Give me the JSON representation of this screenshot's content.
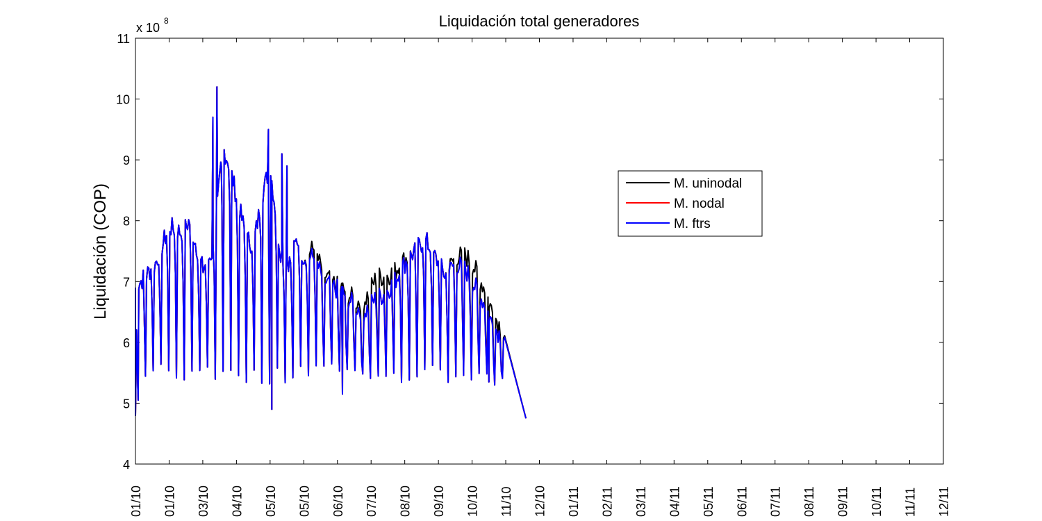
{
  "chart_data": {
    "type": "line",
    "title": "Liquidación total generadores",
    "xlabel": "",
    "ylabel": "Liquidación (COP)",
    "y_multiplier_label": "x 10",
    "y_multiplier_exponent": "8",
    "ylim": [
      4,
      11
    ],
    "yticks": [
      4,
      5,
      6,
      7,
      8,
      9,
      10,
      11
    ],
    "x_tick_labels": [
      "01/10",
      "01/10",
      "03/10",
      "04/10",
      "05/10",
      "05/10",
      "06/10",
      "07/10",
      "08/10",
      "09/10",
      "10/10",
      "11/10",
      "12/10",
      "01/11",
      "02/11",
      "03/11",
      "04/11",
      "05/11",
      "06/11",
      "07/11",
      "08/11",
      "09/11",
      "10/11",
      "11/11",
      "12/11"
    ],
    "grid": false,
    "legend": {
      "position": "center-right"
    },
    "series": [
      {
        "name": "M. uninodal",
        "color": "#000000",
        "values": []
      },
      {
        "name": "M. nodal",
        "color": "#ff0000",
        "values": []
      },
      {
        "name": "M. ftrs",
        "color": "#0000ff",
        "values": []
      }
    ],
    "daily_values_note": "",
    "baseline": [
      [
        0.0,
        6.9
      ],
      [
        0.6,
        7.3
      ],
      [
        1.0,
        7.9
      ],
      [
        1.4,
        7.8
      ],
      [
        1.6,
        8.0
      ],
      [
        2.0,
        7.2
      ],
      [
        2.3,
        7.5
      ],
      [
        2.6,
        9.2
      ],
      [
        2.8,
        8.9
      ],
      [
        3.0,
        8.4
      ],
      [
        3.3,
        7.7
      ],
      [
        3.5,
        7.6
      ],
      [
        3.8,
        8.5
      ],
      [
        4.0,
        8.9
      ],
      [
        4.3,
        7.5
      ],
      [
        4.6,
        7.3
      ],
      [
        4.8,
        7.7
      ],
      [
        5.0,
        7.4
      ],
      [
        5.3,
        7.4
      ],
      [
        5.6,
        7.0
      ],
      [
        5.9,
        6.9
      ],
      [
        6.2,
        6.8
      ],
      [
        6.5,
        6.6
      ],
      [
        6.8,
        6.5
      ],
      [
        7.1,
        6.7
      ],
      [
        7.4,
        6.8
      ],
      [
        7.7,
        7.0
      ],
      [
        8.0,
        7.3
      ],
      [
        8.3,
        7.5
      ],
      [
        8.6,
        7.7
      ],
      [
        8.9,
        7.4
      ],
      [
        9.2,
        7.1
      ],
      [
        9.5,
        7.3
      ],
      [
        9.8,
        7.2
      ],
      [
        10.1,
        6.9
      ],
      [
        10.4,
        6.6
      ],
      [
        10.6,
        6.3
      ],
      [
        11.0,
        6.0
      ]
    ],
    "black_offset": [
      [
        5.0,
        0.0
      ],
      [
        5.3,
        0.15
      ],
      [
        6.0,
        0.05
      ],
      [
        6.6,
        0.1
      ],
      [
        7.2,
        0.35
      ],
      [
        7.6,
        0.2
      ],
      [
        8.2,
        0.0
      ],
      [
        9.2,
        0.0
      ],
      [
        9.6,
        0.15
      ],
      [
        10.0,
        0.3
      ],
      [
        10.4,
        0.25
      ],
      [
        10.8,
        0.15
      ],
      [
        11.0,
        0.0
      ]
    ],
    "spikes": [
      [
        2.3,
        9.7
      ],
      [
        2.42,
        10.2
      ],
      [
        2.55,
        8.9
      ],
      [
        3.95,
        9.5
      ],
      [
        4.05,
        8.3
      ],
      [
        4.35,
        9.1
      ],
      [
        4.5,
        8.9
      ]
    ],
    "dips": [
      [
        0.0,
        4.8
      ],
      [
        0.08,
        5.05
      ],
      [
        4.05,
        4.9
      ],
      [
        6.15,
        5.15
      ],
      [
        11.6,
        4.75
      ],
      [
        10.5,
        5.35
      ]
    ]
  }
}
